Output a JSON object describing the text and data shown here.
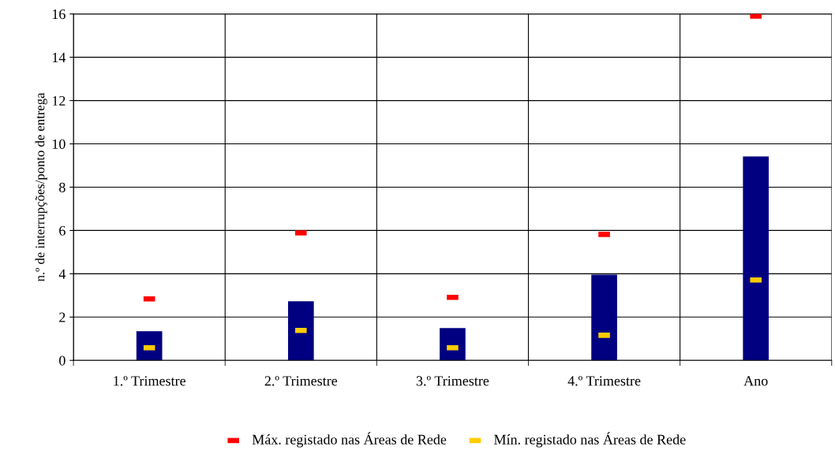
{
  "chart_data": {
    "type": "bar",
    "ylabel": "n.º de interrupções/ponto de entrega",
    "categories": [
      "1.º Trimestre",
      "2.º Trimestre",
      "3.º Trimestre",
      "4.º Trimestre",
      "Ano"
    ],
    "series": [
      {
        "color": "#000080",
        "values": [
          1.35,
          2.73,
          1.49,
          3.96,
          9.42
        ]
      },
      {
        "type": "scatter",
        "name": "Máx. registado nas Áreas de Rede",
        "color": "#ff0000",
        "values": [
          2.84,
          5.89,
          2.91,
          5.82,
          15.9
        ]
      },
      {
        "type": "scatter",
        "name": "Mín. registado nas Áreas de Rede",
        "color": "#ffcc00",
        "values": [
          0.58,
          1.38,
          0.58,
          1.16,
          3.71
        ]
      }
    ],
    "ylim": [
      0,
      16
    ],
    "yticks": [
      0,
      2,
      4,
      6,
      8,
      10,
      12,
      14,
      16
    ],
    "grid": true,
    "legend": "bottom"
  }
}
